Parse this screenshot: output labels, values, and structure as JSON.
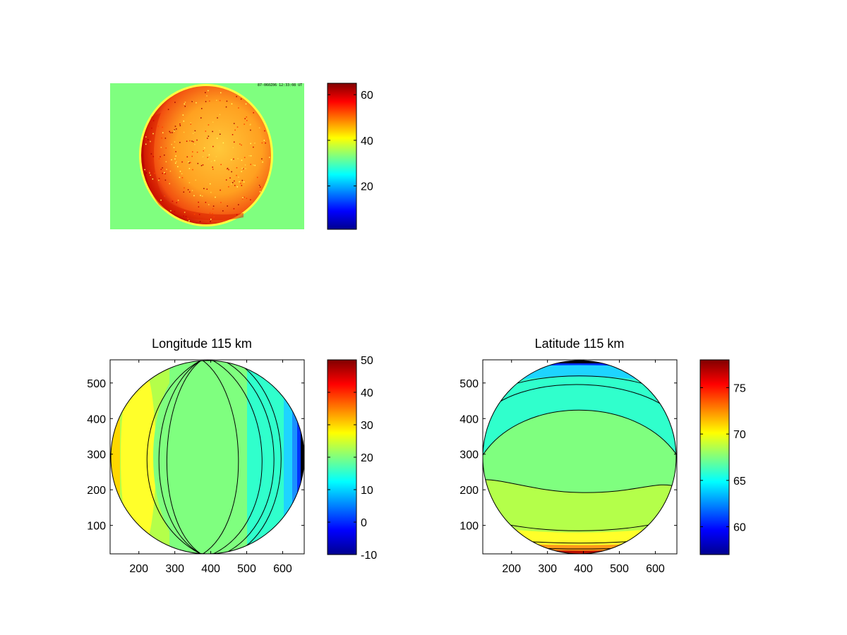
{
  "figure": {
    "background": "#ffffff",
    "colormap": "jet"
  },
  "chart_data": [
    {
      "id": "image-panel",
      "type": "heatmap",
      "title": "",
      "xlabel": "",
      "ylabel": "",
      "axes_visible": false,
      "description_values": {
        "background_value": 30,
        "disk_mean_value": 42,
        "limb_value": 55
      },
      "stamp_text": "87-060Z06 12:33:08 UT",
      "colorbar": {
        "clim": [
          1,
          65
        ],
        "ticks": [
          20,
          40,
          60
        ],
        "tick_labels": [
          "20",
          "40",
          "60"
        ]
      }
    },
    {
      "id": "longitude-panel",
      "type": "heatmap",
      "title": "Longitude 115 km",
      "xlabel": "",
      "ylabel": "",
      "xlim": [
        120,
        660
      ],
      "ylim": [
        20,
        565
      ],
      "x_ticks": [
        200,
        300,
        400,
        500,
        600
      ],
      "x_tick_labels": [
        "200",
        "300",
        "400",
        "500",
        "600"
      ],
      "y_ticks": [
        100,
        200,
        300,
        400,
        500
      ],
      "y_tick_labels": [
        "100",
        "200",
        "300",
        "400",
        "500"
      ],
      "disk": {
        "cx": 390,
        "cy": 292,
        "r": 270
      },
      "contour_levels": [
        -10,
        -5,
        0,
        5,
        10,
        15,
        20,
        25,
        30
      ],
      "filled_bands": [
        {
          "range": [
            25,
            30
          ],
          "value": 27.5
        },
        {
          "range": [
            20,
            25
          ],
          "value": 22.5
        },
        {
          "range": [
            15,
            20
          ],
          "value": 18.5
        },
        {
          "range": [
            10,
            15
          ],
          "value": 14
        },
        {
          "range": [
            5,
            10
          ],
          "value": 9
        },
        {
          "range": [
            0,
            5
          ],
          "value": 4
        },
        {
          "range": [
            -5,
            0
          ],
          "value": -2
        },
        {
          "range": [
            -10,
            -5
          ],
          "value": -8
        }
      ],
      "colorbar": {
        "clim": [
          -10,
          50
        ],
        "ticks": [
          -10,
          0,
          10,
          20,
          30,
          40,
          50
        ],
        "tick_labels": [
          "-10",
          "0",
          "10",
          "20",
          "30",
          "40",
          "50"
        ]
      }
    },
    {
      "id": "latitude-panel",
      "type": "heatmap",
      "title": "Latitude 115 km",
      "xlabel": "",
      "ylabel": "",
      "xlim": [
        120,
        660
      ],
      "ylim": [
        20,
        565
      ],
      "x_ticks": [
        200,
        300,
        400,
        500,
        600
      ],
      "x_tick_labels": [
        "200",
        "300",
        "400",
        "500",
        "600"
      ],
      "y_ticks": [
        100,
        200,
        300,
        400,
        500
      ],
      "y_tick_labels": [
        "100",
        "200",
        "300",
        "400",
        "500"
      ],
      "disk": {
        "cx": 390,
        "cy": 292,
        "r": 270
      },
      "filled_bands": [
        {
          "y_range": [
            20,
            45
          ],
          "value": 73
        },
        {
          "y_range": [
            45,
            70
          ],
          "value": 70.5
        },
        {
          "y_range": [
            70,
            200
          ],
          "value": 68.5
        },
        {
          "y_range": [
            200,
            430
          ],
          "value": 66.5
        },
        {
          "y_range": [
            430,
            520
          ],
          "value": 64.5
        },
        {
          "y_range": [
            520,
            545
          ],
          "value": 62
        },
        {
          "y_range": [
            545,
            565
          ],
          "value": 58
        }
      ],
      "colorbar": {
        "clim": [
          57,
          78
        ],
        "ticks": [
          60,
          65,
          70,
          75
        ],
        "tick_labels": [
          "60",
          "65",
          "70",
          "75"
        ]
      }
    }
  ]
}
